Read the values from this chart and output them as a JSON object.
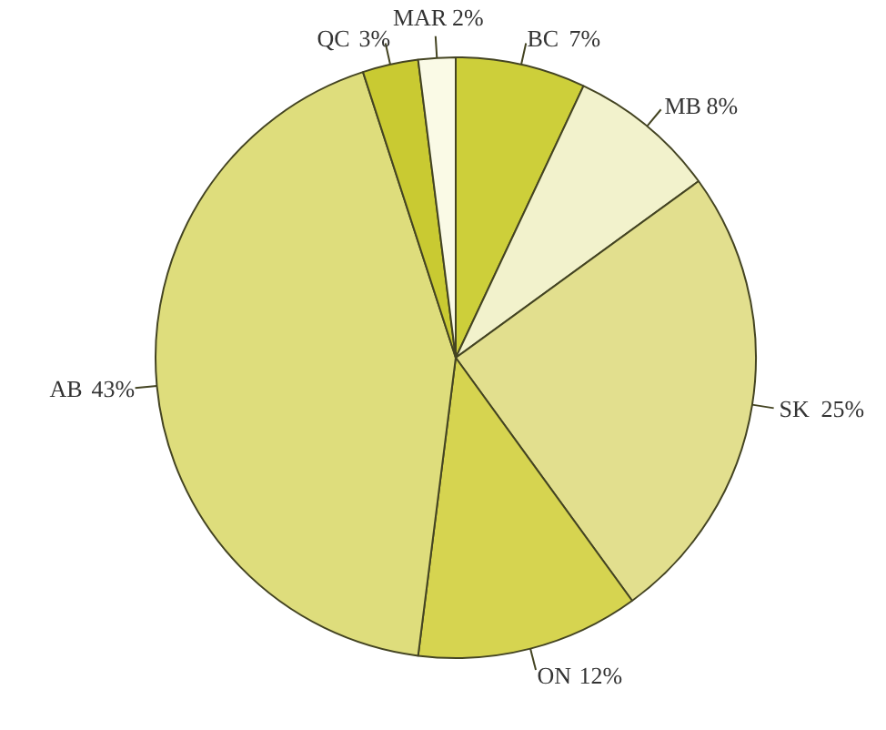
{
  "chart_data": {
    "type": "pie",
    "categories": [
      "BC",
      "MB",
      "SK",
      "ON",
      "AB",
      "QC",
      "MAR"
    ],
    "values": [
      7,
      8,
      25,
      12,
      43,
      3,
      2
    ],
    "value_labels": [
      "7%",
      "8%",
      "25%",
      "12%",
      "43%",
      "3%",
      "2%"
    ],
    "colors": [
      "#cdcf3a",
      "#f2f2cc",
      "#e2df8e",
      "#d6d450",
      "#dedd7c",
      "#c9ca32",
      "#fafae6"
    ]
  }
}
